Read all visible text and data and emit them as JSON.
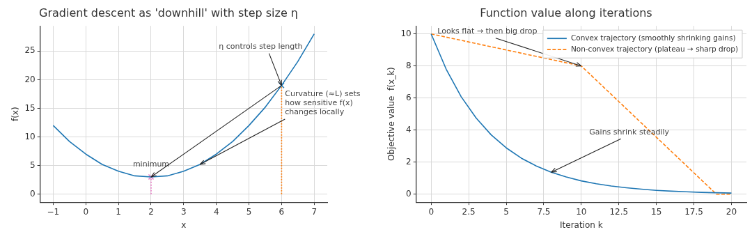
{
  "chart_data": [
    {
      "type": "line",
      "title": "Gradient descent as 'downhill' with step size η",
      "xlabel": "x",
      "ylabel": "f(x)",
      "xlim": [
        -1.4,
        7.4
      ],
      "xticks": [
        {
          "value": -1,
          "label": "−1"
        },
        0,
        1,
        2,
        3,
        4,
        5,
        6,
        7
      ],
      "ylim": [
        -1.4,
        29.4
      ],
      "yticks": [
        0,
        5,
        10,
        15,
        20,
        25
      ],
      "grid": true,
      "series": [
        {
          "color": "#1f77b4",
          "x": [
            -1,
            -0.5,
            0,
            0.5,
            1,
            1.5,
            2,
            2.5,
            3,
            3.5,
            4,
            4.5,
            5,
            5.5,
            6,
            6.5,
            7
          ],
          "values": [
            12,
            9.2,
            7,
            5.2,
            4,
            3.2,
            3,
            3.2,
            4,
            5.2,
            7,
            9.2,
            12,
            15.2,
            19,
            23.2,
            28
          ]
        },
        {
          "color": "#e377c2",
          "line_style": "dotted",
          "x": [
            2,
            2
          ],
          "values": [
            0,
            3
          ]
        },
        {
          "color": "#ff7f0e",
          "line_style": "dotted",
          "x": [
            6,
            6
          ],
          "values": [
            0,
            19
          ]
        },
        {
          "type": "scatter",
          "marker": "cross",
          "color": "#e377c2",
          "x": [
            2
          ],
          "values": [
            3
          ]
        },
        {
          "type": "scatter",
          "marker": "cross",
          "color": "#1f77b4",
          "x": [
            6
          ],
          "values": [
            19
          ]
        }
      ],
      "annotations": [
        {
          "text": "η controls step length",
          "x": 6,
          "y": 19
        },
        {
          "text": "minimum",
          "x": 2,
          "y": 3
        },
        {
          "text": "Curvature (≈L) sets how sensitive f(x) changes locally",
          "x": 3.5,
          "y": 5.2
        }
      ]
    },
    {
      "type": "line",
      "title": "Function value along iterations",
      "xlabel": "Iteration k",
      "ylabel": "Objective value  f(x_k)",
      "xlim": [
        -1,
        21
      ],
      "xticks": [
        0,
        2.5,
        5,
        7.5,
        10,
        12.5,
        15,
        17.5,
        20
      ],
      "ylim": [
        -0.5,
        10.5
      ],
      "yticks": [
        0,
        2,
        4,
        6,
        8,
        10
      ],
      "grid": true,
      "legend": "top right",
      "series": [
        {
          "name": "Convex trajectory (smoothly shrinking gains)",
          "color": "#1f77b4",
          "line_style": "solid",
          "x": [
            0,
            1,
            2,
            3,
            4,
            5,
            6,
            7,
            8,
            9,
            10,
            11,
            12,
            13,
            14,
            15,
            16,
            17,
            18,
            19,
            20
          ],
          "values": [
            10,
            7.8,
            6.08,
            4.75,
            3.7,
            2.89,
            2.25,
            1.76,
            1.37,
            1.07,
            0.83,
            0.65,
            0.51,
            0.4,
            0.31,
            0.24,
            0.19,
            0.15,
            0.11,
            0.09,
            0.07
          ]
        },
        {
          "name": "Non-convex trajectory (plateau → sharp drop)",
          "color": "#ff7f0e",
          "line_style": "dashed",
          "x": [
            0,
            10,
            19,
            20
          ],
          "values": [
            10,
            8,
            0,
            0
          ]
        }
      ],
      "annotations": [
        {
          "text": "Looks flat → then big drop",
          "x": 10,
          "y": 8
        },
        {
          "text": "Gains shrink steadily",
          "x": 8,
          "y": 1.37
        }
      ]
    }
  ]
}
